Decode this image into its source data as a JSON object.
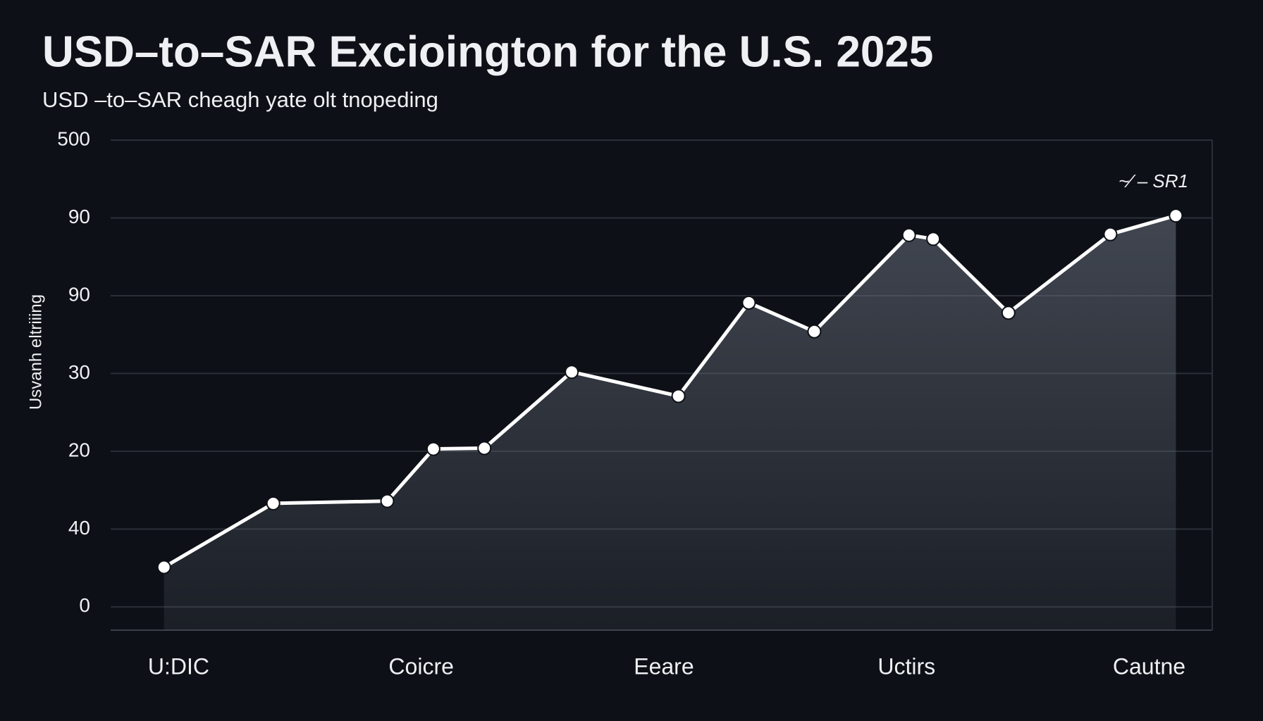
{
  "chart_data": {
    "type": "line",
    "title": "USD–to–SAR  Excioington for the U.S. 2025",
    "subtitle": "USD –to–SAR cheagh yate olt tnopeding",
    "y_label": "Usvanh eltriiing",
    "annotation": "~⁄ – SR1",
    "x": [
      -0.06,
      0.39,
      0.86,
      1.05,
      1.26,
      1.62,
      2.06,
      2.35,
      2.62,
      3.01,
      3.11,
      3.42,
      3.84,
      4.11
    ],
    "series": [
      {
        "name": "USD-to-SAR",
        "color": "#ffffff",
        "values": [
          0.51,
          1.33,
          1.36,
          2.03,
          2.04,
          3.02,
          2.71,
          3.91,
          3.54,
          4.78,
          4.73,
          3.78,
          4.79,
          5.03
        ]
      }
    ],
    "xlim": [
      -0.28,
      4.26
    ],
    "xticks": [
      {
        "value": 0,
        "label": "U:DIC"
      },
      {
        "value": 1,
        "label": "Coicre"
      },
      {
        "value": 2,
        "label": "Eeare"
      },
      {
        "value": 3,
        "label": "Uctirs"
      },
      {
        "value": 4,
        "label": "Cautne"
      }
    ],
    "ylim": [
      -0.3,
      6
    ],
    "yticks": [
      {
        "value": 0,
        "label": "0"
      },
      {
        "value": 1,
        "label": "40"
      },
      {
        "value": 2,
        "label": "20"
      },
      {
        "value": 3,
        "label": "30"
      },
      {
        "value": 4,
        "label": "90"
      },
      {
        "value": 5,
        "label": "90"
      },
      {
        "value": 6,
        "label": "500"
      }
    ],
    "grid": true,
    "fill": "#6b7280"
  }
}
